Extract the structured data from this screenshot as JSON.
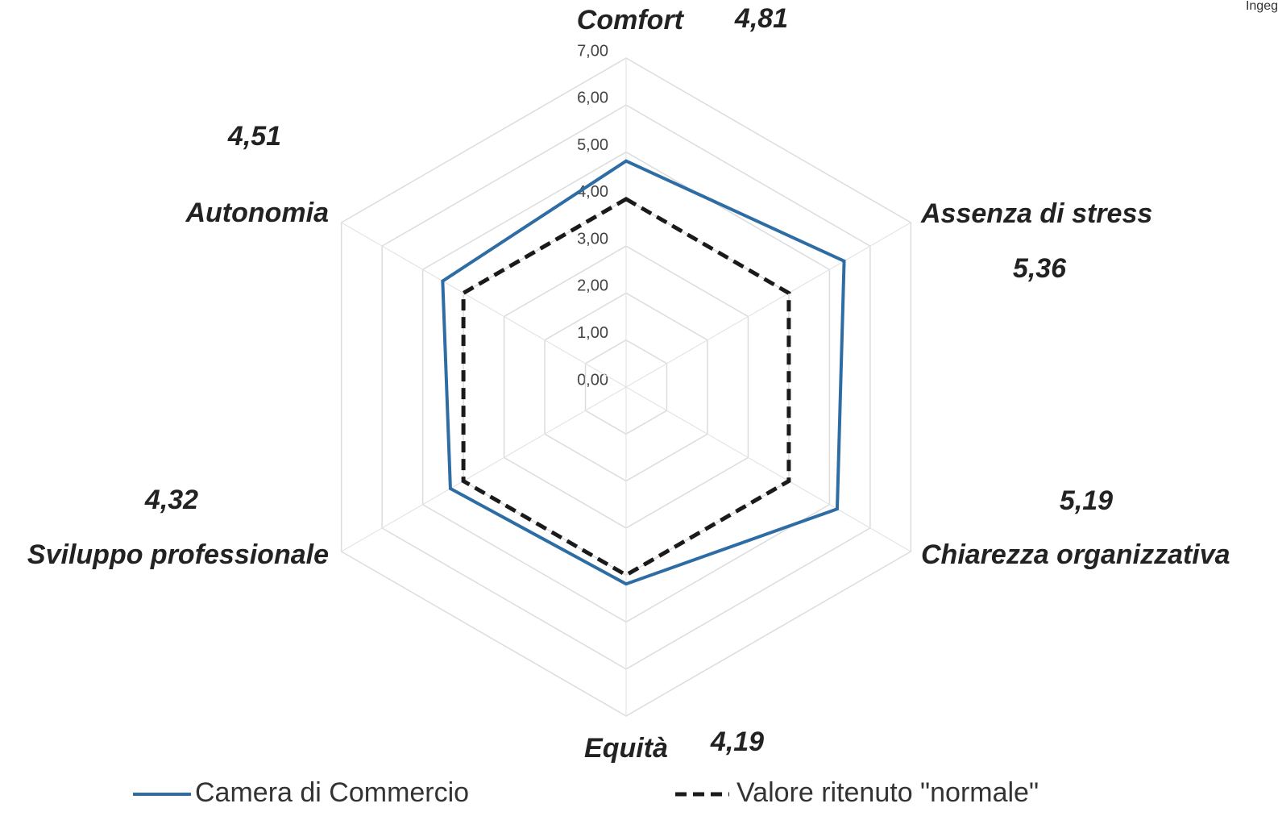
{
  "chart_data": {
    "type": "radar",
    "categories": [
      "Comfort",
      "Assenza di stress",
      "Chiarezza organizzativa",
      "Equità",
      "Sviluppo professionale",
      "Autonomia"
    ],
    "series": [
      {
        "name": "Camera di Commercio",
        "color": "#2e6da4",
        "values": [
          4.81,
          5.36,
          5.19,
          4.19,
          4.32,
          4.51
        ],
        "value_labels": [
          "4,81",
          "5,36",
          "5,19",
          "4,19",
          "4,32",
          "4,51"
        ]
      },
      {
        "name": "Valore ritenuto \"normale\"",
        "color": "#1a1a1a",
        "dashed": true,
        "values": [
          4,
          4,
          4,
          4,
          4,
          4
        ]
      }
    ],
    "rlim": [
      0,
      7
    ],
    "rticks": [
      {
        "value": 0,
        "label": "0,00"
      },
      {
        "value": 1,
        "label": "1,00"
      },
      {
        "value": 2,
        "label": "2,00"
      },
      {
        "value": 3,
        "label": "3,00"
      },
      {
        "value": 4,
        "label": "4,00"
      },
      {
        "value": 5,
        "label": "5,00"
      },
      {
        "value": 6,
        "label": "6,00"
      },
      {
        "value": 7,
        "label": "7,00"
      }
    ],
    "grid": true,
    "legend": "bottom"
  },
  "corner_text": "Ingeg"
}
